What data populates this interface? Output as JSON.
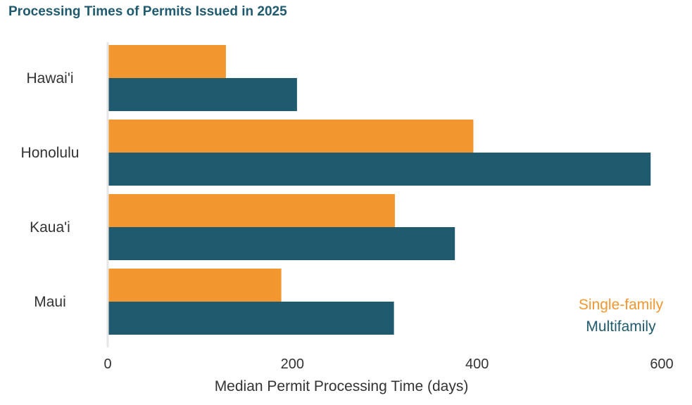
{
  "chart_data": {
    "type": "bar",
    "orientation": "horizontal",
    "title": "Processing Times of Permits Issued in 2025",
    "xlabel": "Median Permit Processing Time (days)",
    "ylabel": "",
    "categories": [
      "Hawai'i",
      "Honolulu",
      "Kaua'i",
      "Maui"
    ],
    "series": [
      {
        "name": "Single-family",
        "color": "#f2962f",
        "values": [
          128,
          396,
          311,
          188
        ]
      },
      {
        "name": "Multifamily",
        "color": "#1f5a6e",
        "values": [
          205,
          588,
          376,
          310
        ]
      }
    ],
    "xlim": [
      0,
      600
    ],
    "xticks": [
      0,
      200,
      400,
      600
    ],
    "grid": false,
    "legend_position": "bottom-right"
  }
}
